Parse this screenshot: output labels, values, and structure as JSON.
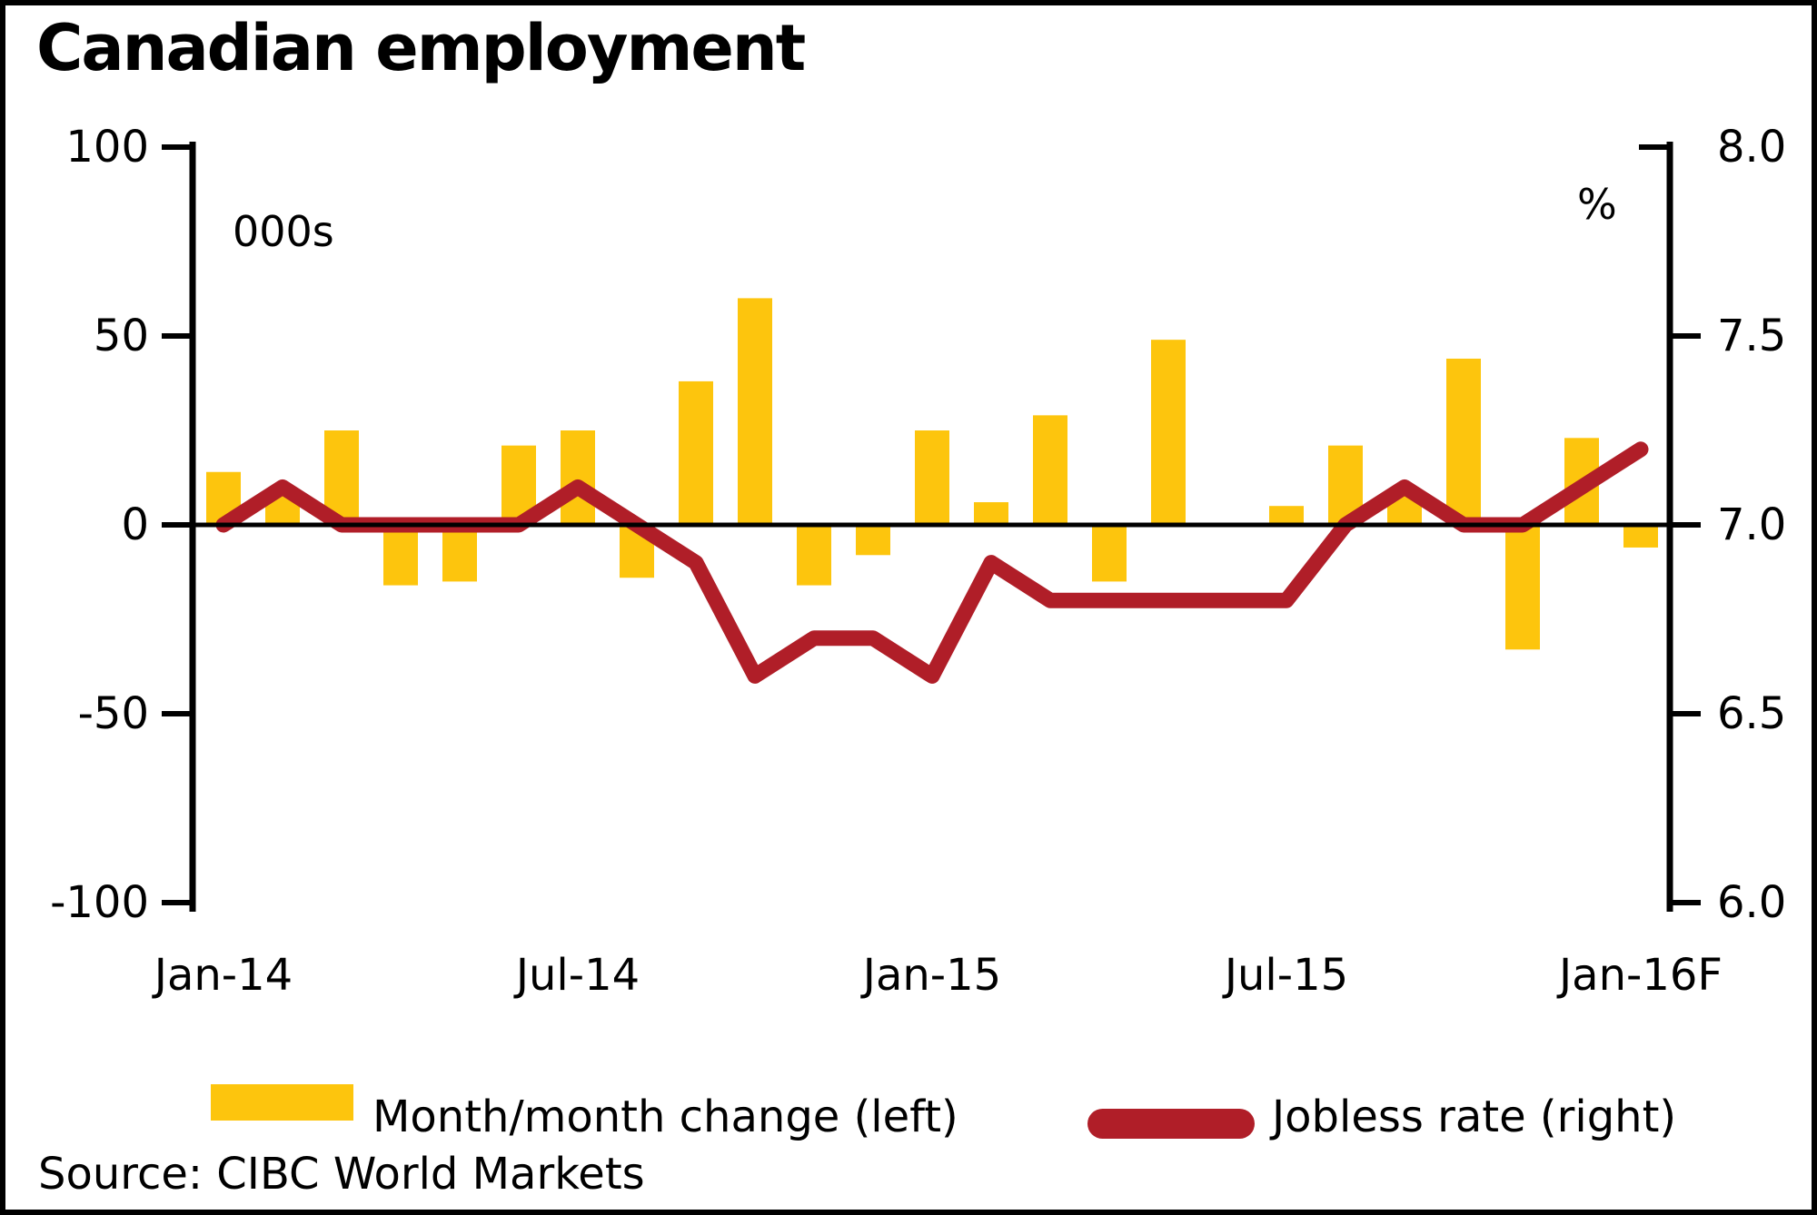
{
  "title": "Canadian employment",
  "left_axis": {
    "unit_label": "000s",
    "ticks": [
      "100",
      "50",
      "0",
      "-50",
      "-100"
    ],
    "range": [
      -100,
      100
    ]
  },
  "right_axis": {
    "unit_label": "%",
    "ticks": [
      "8.0",
      "7.5",
      "7.0",
      "6.5",
      "6.0"
    ],
    "range": [
      6.0,
      8.0
    ]
  },
  "x_axis": {
    "tick_labels": [
      "Jan-14",
      "Jul-14",
      "Jan-15",
      "Jul-15",
      "Jan-16F"
    ]
  },
  "legend": {
    "bar_label": "Month/month change (left)",
    "line_label": "Jobless rate (right)"
  },
  "source": "Source: CIBC World Markets",
  "colors": {
    "bar": "#FDC50D",
    "line": "#B01E28",
    "axis": "#000000",
    "background": "#FFFFFF",
    "text": "#000000"
  },
  "chart_data": {
    "type": "bar",
    "subtype": "bar+line dual axis",
    "title": "Canadian employment",
    "categories": [
      "Jan-14",
      "Feb-14",
      "Mar-14",
      "Apr-14",
      "May-14",
      "Jun-14",
      "Jul-14",
      "Aug-14",
      "Sep-14",
      "Oct-14",
      "Nov-14",
      "Dec-14",
      "Jan-15",
      "Feb-15",
      "Mar-15",
      "Apr-15",
      "May-15",
      "Jun-15",
      "Jul-15",
      "Aug-15",
      "Sep-15",
      "Oct-15",
      "Nov-15",
      "Dec-15",
      "Jan-16F"
    ],
    "series": [
      {
        "name": "Month/month change (left)",
        "type": "bar",
        "axis": "left",
        "unit": "000s",
        "values": [
          14,
          8,
          25,
          -16,
          -15,
          21,
          25,
          -14,
          38,
          60,
          -16,
          -8,
          25,
          6,
          29,
          -15,
          49,
          0,
          5,
          21,
          8,
          44,
          -33,
          23,
          -6
        ]
      },
      {
        "name": "Jobless rate (right)",
        "type": "line",
        "axis": "right",
        "unit": "%",
        "values": [
          7.0,
          7.1,
          7.0,
          7.0,
          7.0,
          7.0,
          7.1,
          7.0,
          6.9,
          6.6,
          6.7,
          6.7,
          6.6,
          6.9,
          6.8,
          6.8,
          6.8,
          6.8,
          6.8,
          7.0,
          7.1,
          7.0,
          7.0,
          7.1,
          7.2
        ]
      }
    ],
    "left_ylim": [
      -100,
      100
    ],
    "right_ylim": [
      6.0,
      8.0
    ],
    "grid": false,
    "legend_position": "bottom"
  }
}
